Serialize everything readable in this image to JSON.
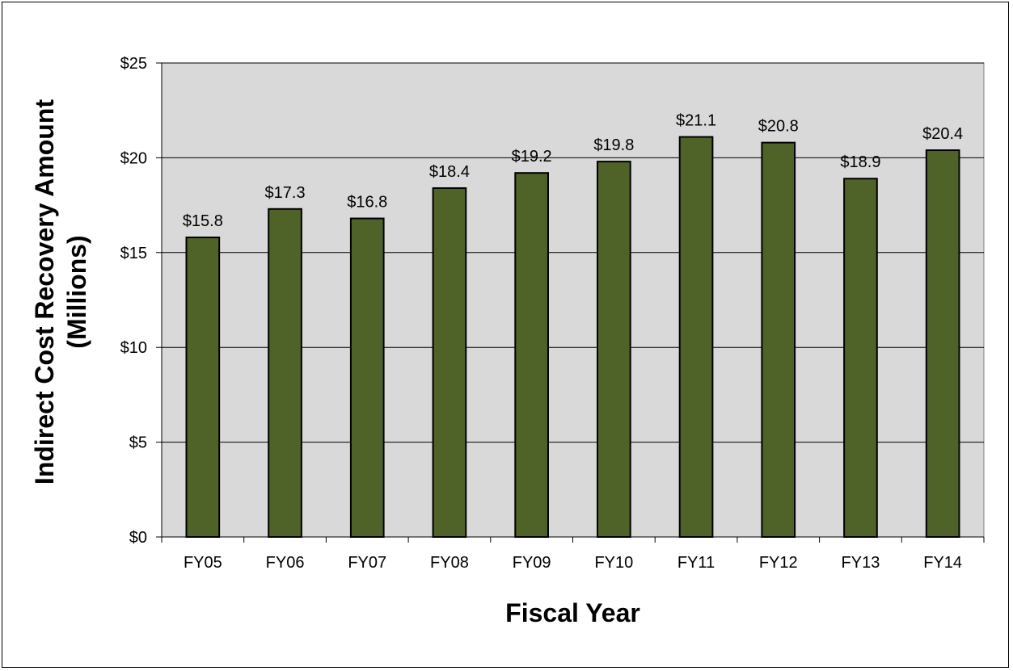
{
  "chart_data": {
    "type": "bar",
    "title": "",
    "xlabel": "Fiscal Year",
    "ylabel_line1": "Indirect Cost Recovery Amount",
    "ylabel_line2": "(Millions)",
    "categories": [
      "FY05",
      "FY06",
      "FY07",
      "FY08",
      "FY09",
      "FY10",
      "FY11",
      "FY12",
      "FY13",
      "FY14"
    ],
    "values": [
      15.8,
      17.3,
      16.8,
      18.4,
      19.2,
      19.8,
      21.1,
      20.8,
      18.9,
      20.4
    ],
    "data_labels": [
      "$15.8",
      "$17.3",
      "$16.8",
      "$18.4",
      "$19.2",
      "$19.8",
      "$21.1",
      "$20.8",
      "$18.9",
      "$20.4"
    ],
    "ylim": [
      0,
      25
    ],
    "yticks": [
      0,
      5,
      10,
      15,
      20,
      25
    ],
    "ytick_labels": [
      "$0",
      "$5",
      "$10",
      "$15",
      "$20",
      "$25"
    ],
    "grid": true,
    "legend": "none",
    "colors": {
      "bar_fill": "#4f6228",
      "bar_stroke": "#000000",
      "plot_background": "#d9d9d9",
      "gridline": "#808080"
    }
  }
}
